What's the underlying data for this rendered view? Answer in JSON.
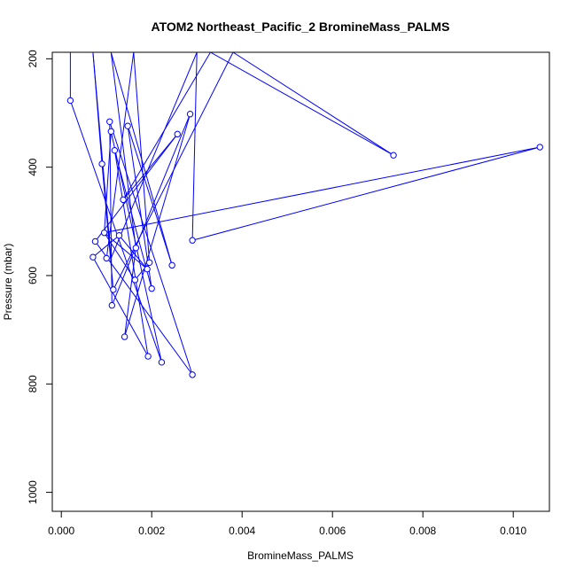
{
  "chart_data": {
    "type": "line",
    "title": "ATOM2 Northeast_Pacific_2 BromineMass_PALMS",
    "xlabel": "BromineMass_PALMS",
    "ylabel": "Pressure (mbar)",
    "xlim": [
      -0.0002,
      0.0108
    ],
    "ylim": [
      1035,
      188
    ],
    "y_reversed": true,
    "x_ticks": [
      0.0,
      0.002,
      0.004,
      0.006,
      0.008,
      0.01
    ],
    "x_tick_labels": [
      "0.000",
      "0.002",
      "0.004",
      "0.006",
      "0.008",
      "0.010"
    ],
    "y_ticks": [
      200,
      400,
      600,
      800,
      1000
    ],
    "y_tick_labels": [
      "200",
      "400",
      "600",
      "800",
      "1000"
    ],
    "grid": false,
    "color": "#0000ff",
    "markers": [
      {
        "x": 0.0002,
        "y": 277
      },
      {
        "x": 0.00107,
        "y": 316
      },
      {
        "x": 0.0011,
        "y": 334
      },
      {
        "x": 0.00147,
        "y": 324
      },
      {
        "x": 0.00285,
        "y": 302
      },
      {
        "x": 0.00257,
        "y": 339
      },
      {
        "x": 0.00735,
        "y": 378
      },
      {
        "x": 0.01059,
        "y": 363
      },
      {
        "x": 0.00118,
        "y": 369
      },
      {
        "x": 0.0009,
        "y": 394
      },
      {
        "x": 0.00137,
        "y": 460
      },
      {
        "x": 0.00095,
        "y": 521
      },
      {
        "x": 0.00128,
        "y": 526
      },
      {
        "x": 0.0029,
        "y": 535
      },
      {
        "x": 0.00075,
        "y": 537
      },
      {
        "x": 0.00165,
        "y": 549
      },
      {
        "x": 0.0007,
        "y": 566
      },
      {
        "x": 0.001,
        "y": 568
      },
      {
        "x": 0.00195,
        "y": 576
      },
      {
        "x": 0.00245,
        "y": 581
      },
      {
        "x": 0.0019,
        "y": 588
      },
      {
        "x": 0.00163,
        "y": 608
      },
      {
        "x": 0.002,
        "y": 624
      },
      {
        "x": 0.00115,
        "y": 626
      },
      {
        "x": 0.00112,
        "y": 655
      },
      {
        "x": 0.0014,
        "y": 713
      },
      {
        "x": 0.00192,
        "y": 749
      },
      {
        "x": 0.00222,
        "y": 760
      },
      {
        "x": 0.0029,
        "y": 783
      }
    ],
    "path": [
      {
        "x": 0.0002,
        "y": 188
      },
      {
        "x": 0.0002,
        "y": 277
      },
      {
        "x": 0.00222,
        "y": 760
      },
      {
        "x": 0.0011,
        "y": 334
      },
      {
        "x": 0.00095,
        "y": 521
      },
      {
        "x": 0.01059,
        "y": 363
      },
      {
        "x": 0.0029,
        "y": 535
      },
      {
        "x": 0.003,
        "y": 188
      },
      {
        "x": 0.0011,
        "y": 568
      },
      {
        "x": 0.0007,
        "y": 188
      },
      {
        "x": 0.0009,
        "y": 394
      },
      {
        "x": 0.00115,
        "y": 626
      },
      {
        "x": 0.0038,
        "y": 188
      },
      {
        "x": 0.00735,
        "y": 378
      },
      {
        "x": 0.0033,
        "y": 188
      },
      {
        "x": 0.00137,
        "y": 460
      },
      {
        "x": 0.00257,
        "y": 339
      },
      {
        "x": 0.00075,
        "y": 537
      },
      {
        "x": 0.0029,
        "y": 783
      },
      {
        "x": 0.00107,
        "y": 316
      },
      {
        "x": 0.00112,
        "y": 655
      },
      {
        "x": 0.00285,
        "y": 302
      },
      {
        "x": 0.0014,
        "y": 713
      },
      {
        "x": 0.00165,
        "y": 549
      },
      {
        "x": 0.0011,
        "y": 188
      },
      {
        "x": 0.00245,
        "y": 581
      },
      {
        "x": 0.00147,
        "y": 324
      },
      {
        "x": 0.002,
        "y": 624
      },
      {
        "x": 0.00118,
        "y": 369
      },
      {
        "x": 0.00192,
        "y": 749
      },
      {
        "x": 0.0007,
        "y": 566
      },
      {
        "x": 0.00128,
        "y": 526
      },
      {
        "x": 0.0019,
        "y": 588
      },
      {
        "x": 0.00095,
        "y": 521
      },
      {
        "x": 0.00163,
        "y": 608
      },
      {
        "x": 0.00195,
        "y": 576
      },
      {
        "x": 0.0016,
        "y": 188
      },
      {
        "x": 0.001,
        "y": 568
      }
    ]
  }
}
